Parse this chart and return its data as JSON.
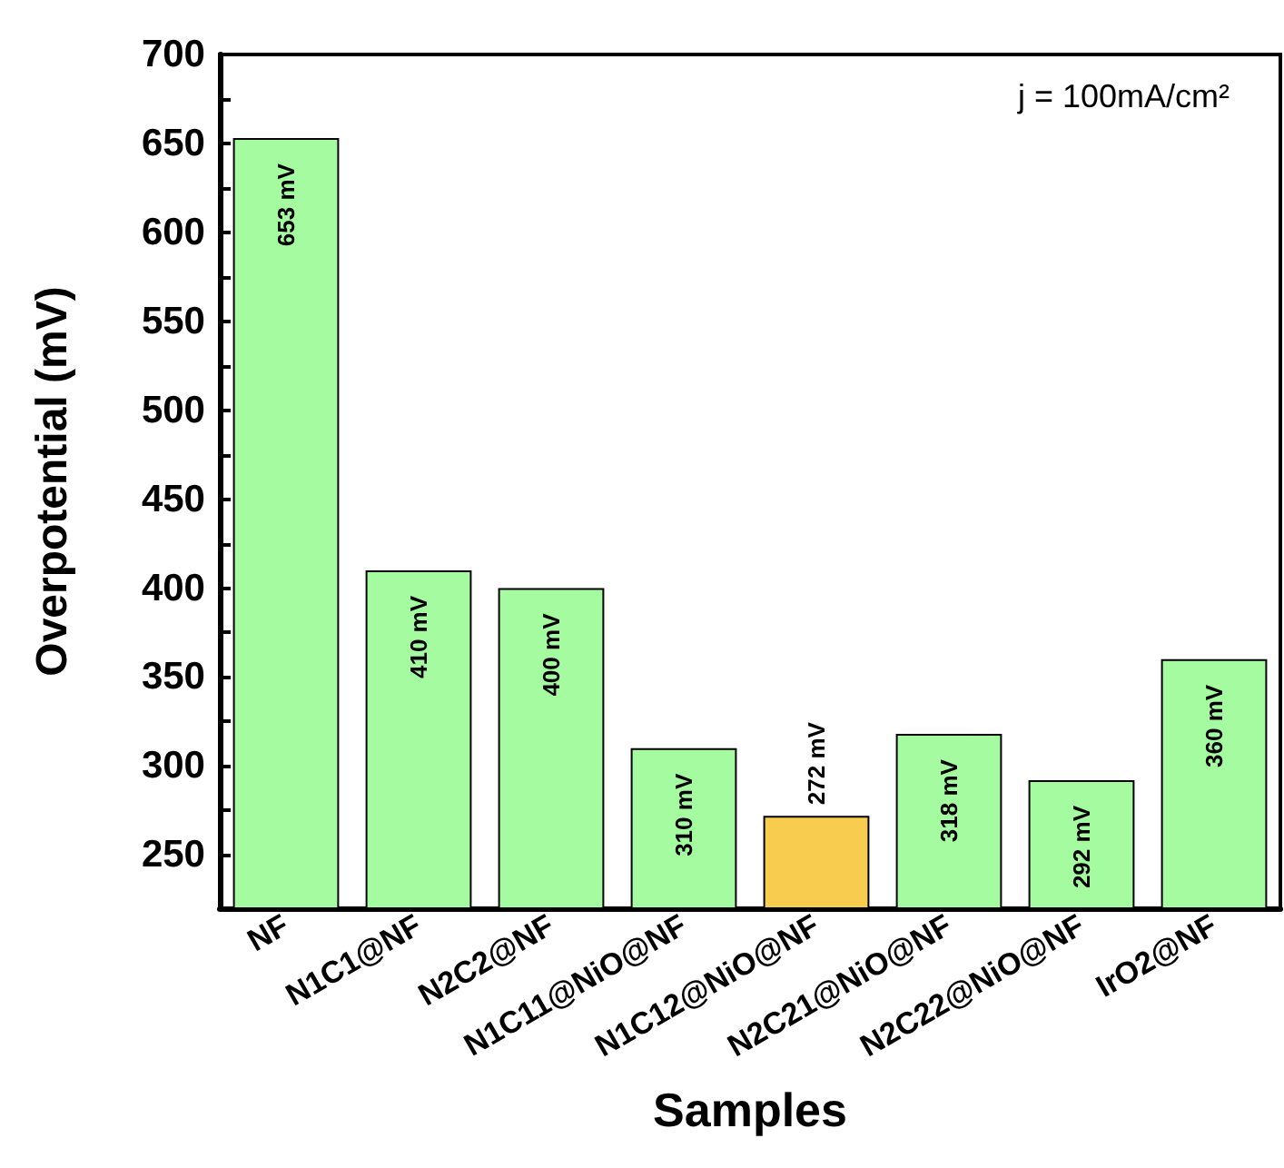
{
  "chart_data": {
    "type": "bar",
    "xlabel": "Samples",
    "ylabel": "Overpotential (mV)",
    "annotations": [
      "j = 100mA/cm²"
    ],
    "categories": [
      "NF",
      "N1C1@NF",
      "N2C2@NF",
      "N1C11@NiO@NF",
      "N1C12@NiO@NF",
      "N2C21@NiO@NF",
      "N2C22@NiO@NF",
      "IrO2@NF"
    ],
    "values": [
      653,
      410,
      400,
      310,
      272,
      318,
      292,
      360
    ],
    "value_labels": [
      "653 mV",
      "410 mV",
      "400 mV",
      "310 mV",
      "272 mV",
      "318 mV",
      "292 mV",
      "360 mV"
    ],
    "colors": [
      "#a5fba0",
      "#a5fba0",
      "#a5fba0",
      "#a5fba0",
      "#f8cd4f",
      "#a5fba0",
      "#a5fba0",
      "#a5fba0"
    ],
    "ylim": [
      220,
      700
    ],
    "yticks": [
      250,
      {
        "value": 275,
        "label": null
      },
      300,
      {
        "value": 325,
        "label": null
      },
      350,
      {
        "value": 375,
        "label": null
      },
      400,
      {
        "value": 425,
        "label": null
      },
      450,
      {
        "value": 475,
        "label": null
      },
      500,
      {
        "value": 525,
        "label": null
      },
      550,
      {
        "value": 575,
        "label": null
      },
      600,
      {
        "value": 625,
        "label": null
      },
      650,
      {
        "value": 675,
        "label": null
      },
      700
    ],
    "grid": false
  }
}
